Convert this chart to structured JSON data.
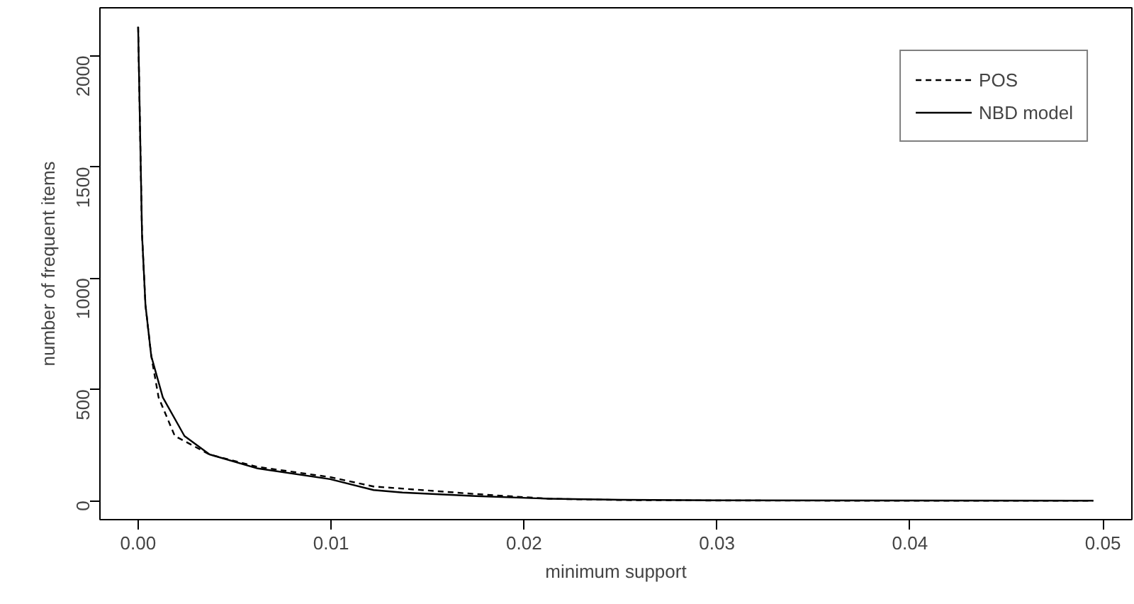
{
  "chart_data": {
    "type": "line",
    "xlabel": "minimum support",
    "ylabel": "number of frequent items",
    "xlim": [
      -0.00198,
      0.0515
    ],
    "ylim": [
      -85,
      2215
    ],
    "xticks": [
      {
        "value": 0,
        "label": "0.00"
      },
      {
        "value": 0.01,
        "label": "0.01"
      },
      {
        "value": 0.02,
        "label": "0.02"
      },
      {
        "value": 0.03,
        "label": "0.03"
      },
      {
        "value": 0.04,
        "label": "0.04"
      },
      {
        "value": 0.05,
        "label": "0.05"
      }
    ],
    "yticks": [
      0,
      500,
      1000,
      1500,
      2000
    ],
    "grid": false,
    "legend": "top right",
    "series": [
      {
        "name": "POS",
        "color": "#000000",
        "line_style": "dashed",
        "x": [
          0,
          0.0002,
          0.00038,
          0.00068,
          0.00106,
          0.0019,
          0.0037,
          0.0062,
          0.00995,
          0.0122,
          0.0175,
          0.0213,
          0.025,
          0.03,
          0.04,
          0.0495
        ],
        "values": [
          2130,
          1200,
          879,
          650,
          464,
          291,
          208,
          152,
          106,
          64,
          30,
          9,
          3,
          1,
          0,
          0
        ]
      },
      {
        "name": "NBD model",
        "color": "#000000",
        "line_style": "solid",
        "x": [
          0,
          0.0002,
          0.00038,
          0.00068,
          0.00128,
          0.0024,
          0.0037,
          0.0062,
          0.00995,
          0.0122,
          0.0137,
          0.0175,
          0.0213,
          0.025,
          0.03,
          0.04,
          0.0495
        ],
        "values": [
          2130,
          1200,
          879,
          650,
          464,
          291,
          208,
          145,
          97,
          48,
          37,
          21,
          9,
          4,
          2,
          1,
          0
        ]
      }
    ]
  }
}
